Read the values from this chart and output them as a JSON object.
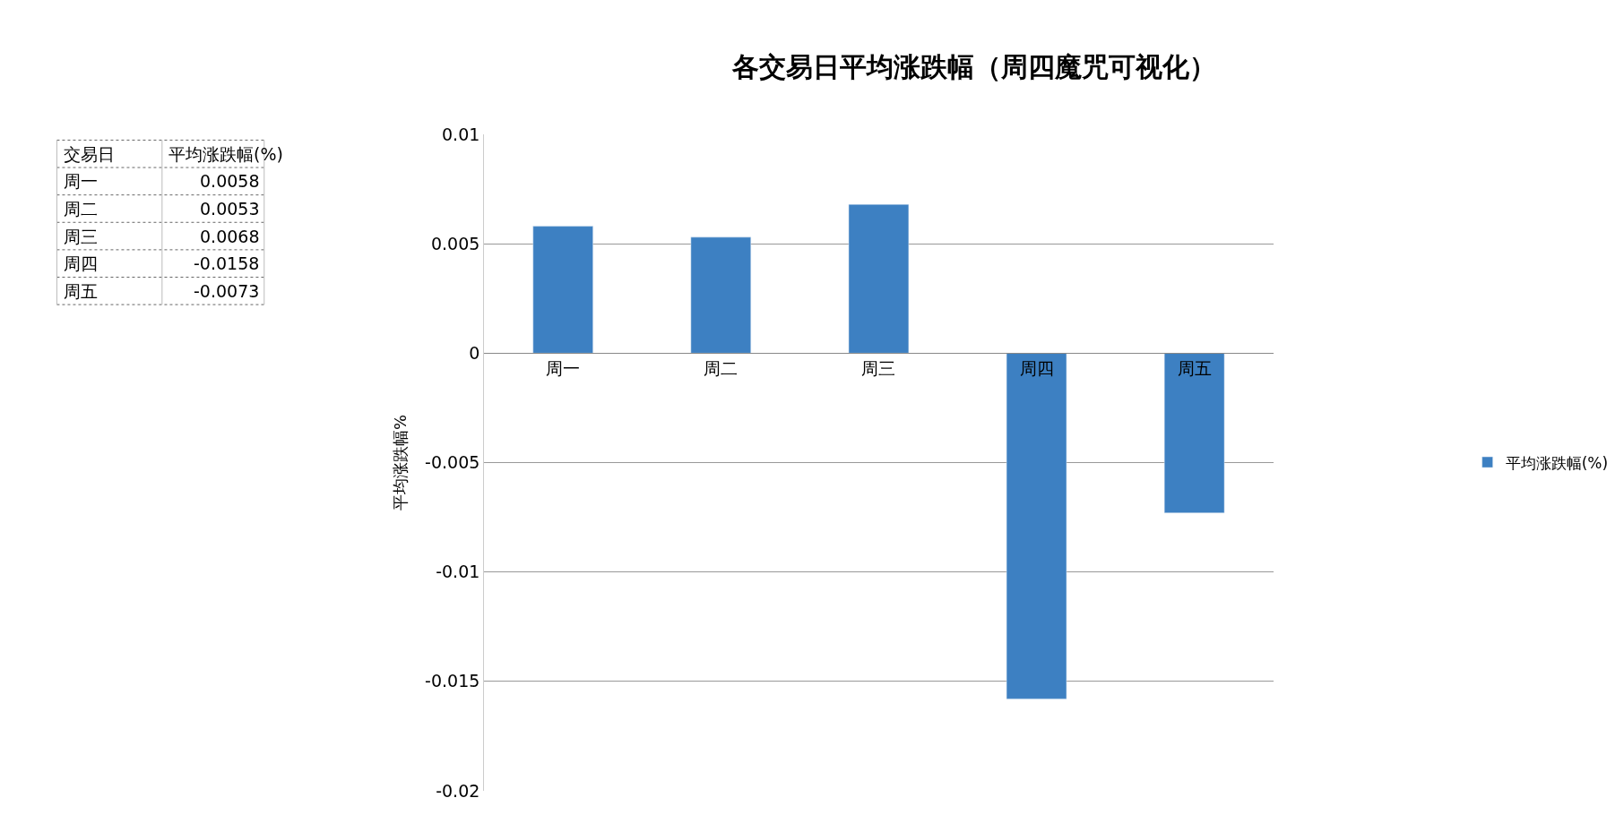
{
  "chart_data": [
    {
      "type": "other",
      "annotations": [
        "交易日",
        "平均涨跌幅(%)",
        "周一",
        "0.0058",
        "周二",
        "0.0053",
        "周三",
        "0.0068",
        "周四",
        "-0.0158",
        "周五",
        "-0.0073"
      ]
    },
    {
      "type": "bar",
      "title": "各交易日平均涨跌幅（周四魔咒可视化）",
      "ylabel": "平均涨跌幅%",
      "categories": [
        "周一",
        "周二",
        "周三",
        "周四",
        "周五"
      ],
      "series": [
        {
          "name": "平均涨跌幅(%)",
          "color": "#3d80c2",
          "values": [
            0.0058,
            0.0053,
            0.0068,
            -0.0158,
            -0.0073
          ]
        }
      ],
      "ylim": [
        -0.02,
        0.01
      ],
      "yticks": [
        -0.02,
        -0.015,
        -0.01,
        -0.005,
        0,
        0.005,
        0.01
      ],
      "grid": "y",
      "legend": "right"
    }
  ]
}
